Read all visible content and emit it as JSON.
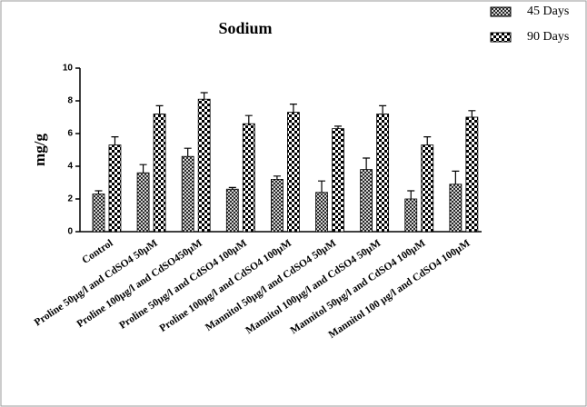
{
  "chart_data": {
    "type": "bar",
    "title": "Sodium",
    "y_label": "mg/g",
    "categories": [
      "Control",
      "Proline 50µg/l and CdSO4 50µM",
      "Proline 100µg/l and CdSO450µM",
      "Proline 50µg/l and CdSO4 100µM",
      "Proline 100µg/l and CdSO4 100µM",
      "Mannitol 50µg/l and CdSO4 50µM",
      "Mannitol 100µg/l and CdSO4 50µM",
      "Mannitol 50µg/l and CdSO4 100µM",
      "Mannitol 100 µg/l and CdSO4 100µM"
    ],
    "series": [
      {
        "name": "45 Days",
        "color": "#000000",
        "values": [
          2.3,
          3.6,
          4.6,
          2.6,
          3.2,
          2.4,
          3.8,
          2.0,
          2.9
        ],
        "errors": [
          0.2,
          0.5,
          0.5,
          0.1,
          0.2,
          0.7,
          0.7,
          0.5,
          0.8
        ]
      },
      {
        "name": "90 Days",
        "color": "#000000",
        "values": [
          5.3,
          7.2,
          8.1,
          6.6,
          7.3,
          6.3,
          7.2,
          5.3,
          7.0
        ],
        "errors": [
          0.5,
          0.5,
          0.4,
          0.5,
          0.5,
          0.15,
          0.5,
          0.5,
          0.4
        ]
      }
    ],
    "ylim": [
      0,
      10
    ],
    "yticks": [
      0,
      2,
      4,
      6,
      8,
      10
    ],
    "legend": "top-right"
  }
}
